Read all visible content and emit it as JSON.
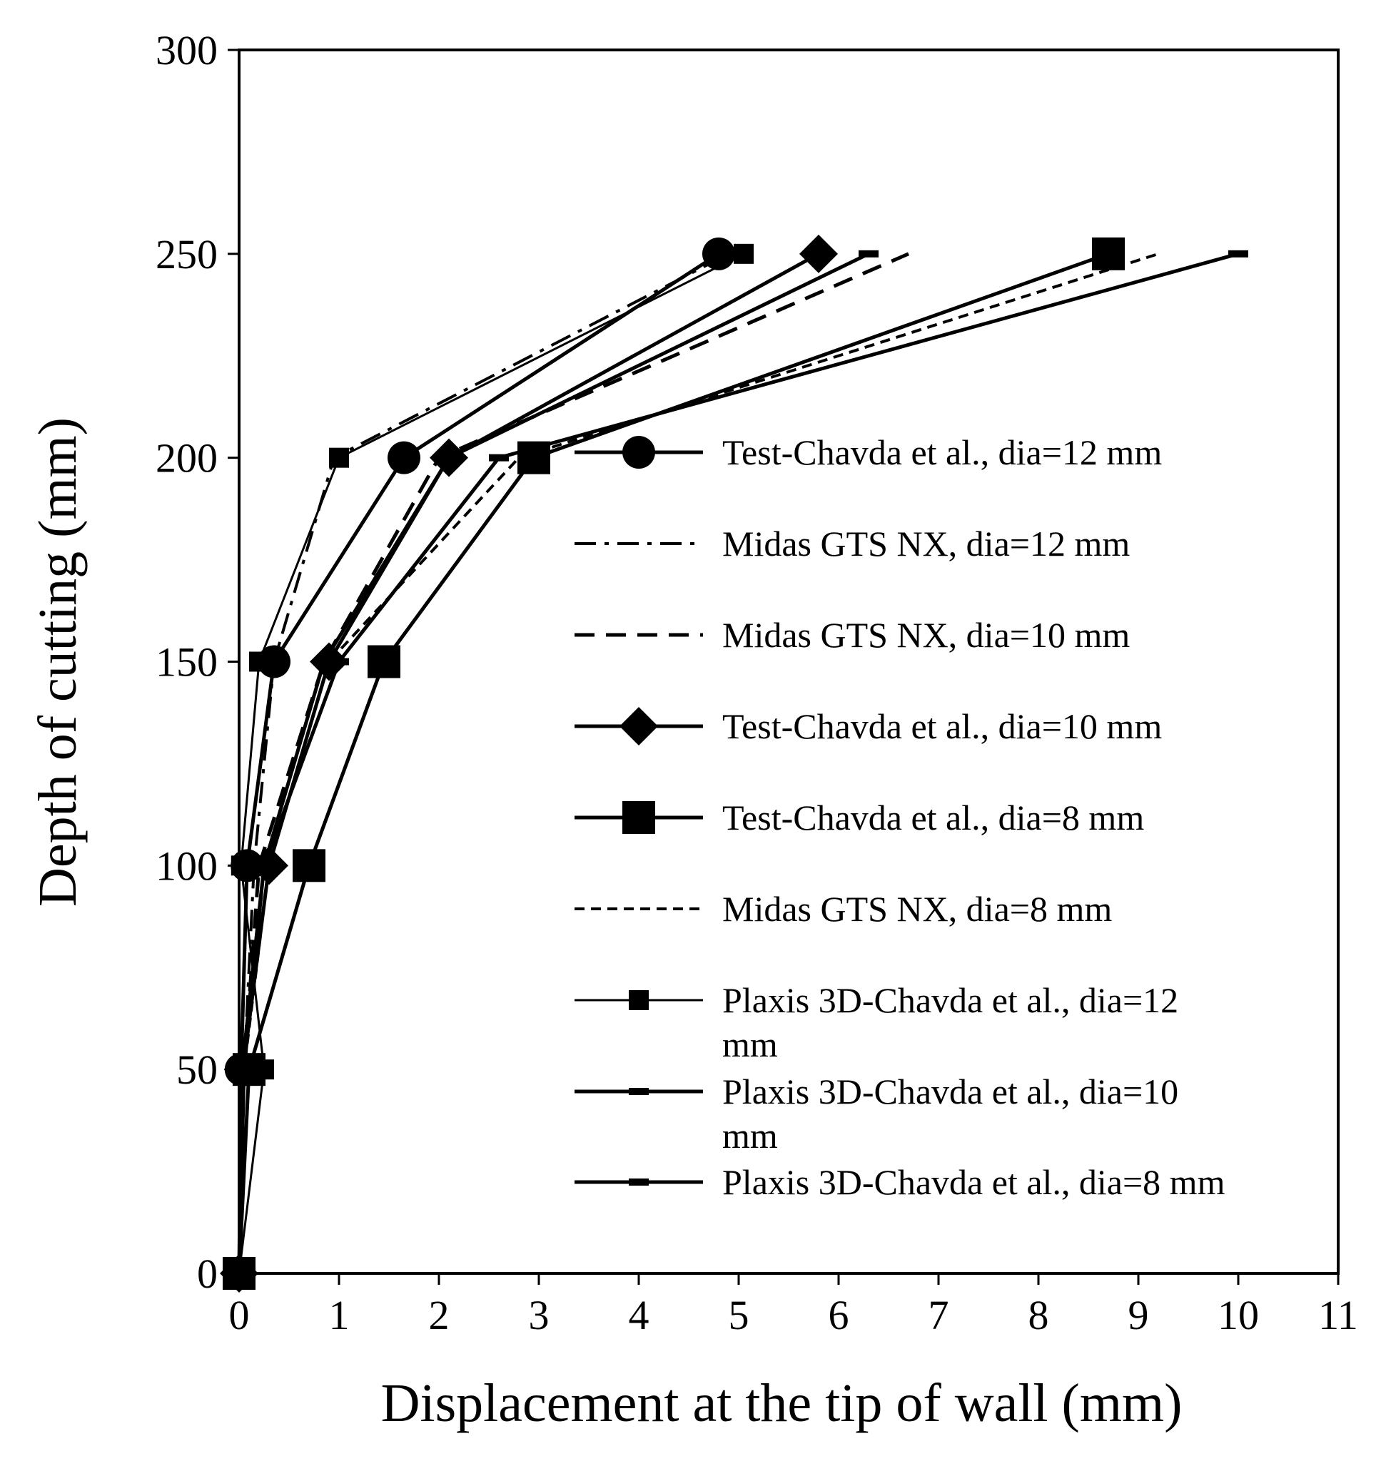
{
  "chart_data": {
    "type": "line",
    "title": "",
    "xlabel": "Displacement at the tip of wall (mm)",
    "ylabel": "Depth of cutting (mm)",
    "xlim": [
      0,
      11
    ],
    "ylim": [
      0,
      300
    ],
    "xticks": [
      "0",
      "1",
      "2",
      "3",
      "4",
      "5",
      "6",
      "7",
      "8",
      "9",
      "10",
      "11"
    ],
    "yticks": [
      "0",
      "50",
      "100",
      "150",
      "200",
      "250",
      "300"
    ],
    "legend_position": "right",
    "series": [
      {
        "name": "Test-Chavda et al., dia=12 mm",
        "legend_lines": [
          "Test-Chavda et al., dia=12 mm"
        ],
        "dash": "solid",
        "marker": "circle",
        "width": 5,
        "x": [
          0,
          0.02,
          0.08,
          0.35,
          1.65,
          4.8
        ],
        "y": [
          0,
          50,
          100,
          150,
          200,
          250
        ]
      },
      {
        "name": "Midas GTS NX, dia=12 mm",
        "legend_lines": [
          "Midas GTS NX, dia=12 mm"
        ],
        "dash": "dashdot",
        "marker": "none",
        "width": 4,
        "x": [
          0,
          0.05,
          0.15,
          0.35,
          0.95,
          4.9
        ],
        "y": [
          0,
          50,
          100,
          150,
          200,
          250
        ]
      },
      {
        "name": "Midas GTS NX, dia=10 mm",
        "legend_lines": [
          "Midas GTS NX, dia=10 mm"
        ],
        "dash": "dash",
        "marker": "none",
        "width": 5,
        "x": [
          0,
          0.05,
          0.2,
          0.85,
          2.0,
          6.7
        ],
        "y": [
          0,
          50,
          100,
          150,
          200,
          250
        ]
      },
      {
        "name": "Test-Chavda et al., dia=10 mm",
        "legend_lines": [
          "Test-Chavda et al., dia=10 mm"
        ],
        "dash": "solid",
        "marker": "diamond",
        "width": 5,
        "x": [
          0,
          0.04,
          0.3,
          0.9,
          2.1,
          5.8
        ],
        "y": [
          0,
          50,
          100,
          150,
          200,
          250
        ]
      },
      {
        "name": "Test-Chavda et al., dia=8 mm",
        "legend_lines": [
          "Test-Chavda et al., dia=8 mm"
        ],
        "dash": "solid",
        "marker": "square",
        "width": 5,
        "x": [
          0,
          0.1,
          0.7,
          1.45,
          2.95,
          8.7
        ],
        "y": [
          0,
          50,
          100,
          150,
          200,
          250
        ]
      },
      {
        "name": "Midas GTS NX, dia=8 mm",
        "legend_lines": [
          "Midas GTS NX, dia=8 mm"
        ],
        "dash": "shortdash",
        "marker": "none",
        "width": 4,
        "x": [
          0,
          0.05,
          0.3,
          0.9,
          2.8,
          9.2
        ],
        "y": [
          0,
          50,
          100,
          150,
          200,
          250
        ]
      },
      {
        "name": "Plaxis 3D-Chavda et al., dia=12 mm",
        "legend_lines": [
          "Plaxis 3D-Chavda et al., dia=12",
          "mm"
        ],
        "dash": "solid",
        "marker": "square-small",
        "width": 3,
        "x": [
          0,
          0.25,
          0.02,
          0.2,
          1.0,
          5.05
        ],
        "y": [
          0,
          50,
          100,
          150,
          200,
          250
        ]
      },
      {
        "name": "Plaxis 3D-Chavda et al., dia=10 mm",
        "legend_lines": [
          "Plaxis 3D-Chavda et al., dia=10",
          "mm"
        ],
        "dash": "solid",
        "marker": "dash-small",
        "width": 5,
        "x": [
          0,
          0.03,
          0.25,
          0.85,
          2.1,
          6.3
        ],
        "y": [
          0,
          50,
          100,
          150,
          200,
          250
        ]
      },
      {
        "name": "Plaxis 3D-Chavda et al., dia=8 mm",
        "legend_lines": [
          "Plaxis 3D-Chavda et al., dia=8 mm"
        ],
        "dash": "solid",
        "marker": "dash-small",
        "width": 5,
        "x": [
          0,
          0.05,
          0.25,
          1.0,
          2.6,
          10.0
        ],
        "y": [
          0,
          50,
          100,
          150,
          200,
          250
        ]
      }
    ]
  }
}
